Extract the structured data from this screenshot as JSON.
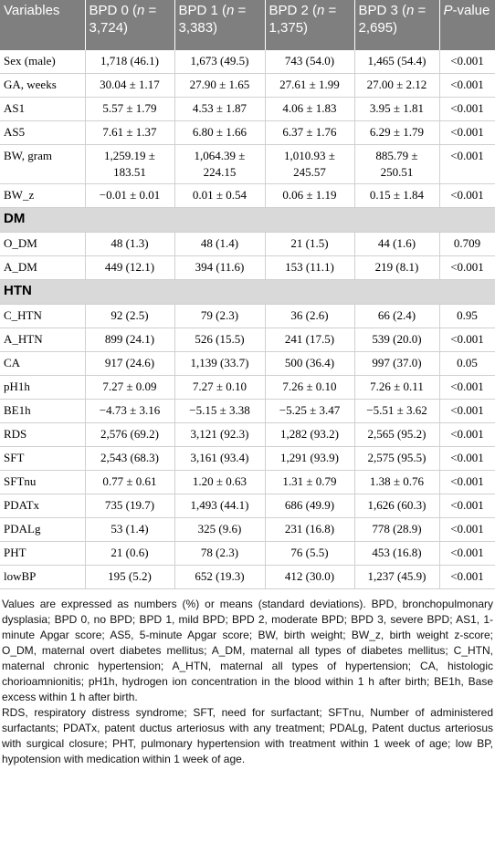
{
  "table": {
    "header": [
      [
        {
          "text": "Variables"
        }
      ],
      [
        {
          "text": "BPD 0 ("
        },
        {
          "text": "n",
          "italic": true
        },
        {
          "text": " = 3,724)"
        }
      ],
      [
        {
          "text": "BPD 1 ("
        },
        {
          "text": "n",
          "italic": true
        },
        {
          "text": " = 3,383)"
        }
      ],
      [
        {
          "text": "BPD 2 ("
        },
        {
          "text": "n",
          "italic": true
        },
        {
          "text": " = 1,375)"
        }
      ],
      [
        {
          "text": "BPD 3 ("
        },
        {
          "text": "n",
          "italic": true
        },
        {
          "text": " = 2,695)"
        }
      ],
      [
        {
          "text": "P",
          "italic": true
        },
        {
          "text": "-value"
        }
      ]
    ],
    "rows": [
      [
        "Sex (male)",
        "1,718 (46.1)",
        "1,673 (49.5)",
        "743 (54.0)",
        "1,465 (54.4)",
        "<0.001"
      ],
      [
        "GA, weeks",
        "30.04 ± 1.17",
        "27.90 ± 1.65",
        "27.61 ± 1.99",
        "27.00 ± 2.12",
        "<0.001"
      ],
      [
        "AS1",
        "5.57 ± 1.79",
        "4.53 ± 1.87",
        "4.06 ± 1.83",
        "3.95 ± 1.81",
        "<0.001"
      ],
      [
        "AS5",
        "7.61 ± 1.37",
        "6.80 ± 1.66",
        "6.37 ± 1.76",
        "6.29 ± 1.79",
        "<0.001"
      ],
      [
        "BW, gram",
        "1,259.19 ± 183.51",
        "1,064.39 ± 224.15",
        "1,010.93 ± 245.57",
        "885.79 ± 250.51",
        "<0.001"
      ],
      [
        "BW_z",
        "−0.01 ± 0.01",
        "0.01 ± 0.54",
        "0.06 ± 1.19",
        "0.15 ± 1.84",
        "<0.001"
      ],
      [
        "DM"
      ],
      [
        "O_DM",
        "48 (1.3)",
        "48 (1.4)",
        "21 (1.5)",
        "44 (1.6)",
        "0.709"
      ],
      [
        "A_DM",
        "449 (12.1)",
        "394 (11.6)",
        "153 (11.1)",
        "219 (8.1)",
        "<0.001"
      ],
      [
        "HTN"
      ],
      [
        "C_HTN",
        "92 (2.5)",
        "79 (2.3)",
        "36 (2.6)",
        "66 (2.4)",
        "0.95"
      ],
      [
        "A_HTN",
        "899 (24.1)",
        "526 (15.5)",
        "241 (17.5)",
        "539 (20.0)",
        "<0.001"
      ],
      [
        "CA",
        "917 (24.6)",
        "1,139 (33.7)",
        "500 (36.4)",
        "997 (37.0)",
        "0.05"
      ],
      [
        "pH1h",
        "7.27 ± 0.09",
        "7.27 ± 0.10",
        "7.26 ± 0.10",
        "7.26 ± 0.11",
        "<0.001"
      ],
      [
        "BE1h",
        "−4.73 ± 3.16",
        "−5.15 ± 3.38",
        "−5.25 ± 3.47",
        "−5.51 ± 3.62",
        "<0.001"
      ],
      [
        "RDS",
        "2,576 (69.2)",
        "3,121 (92.3)",
        "1,282 (93.2)",
        "2,565 (95.2)",
        "<0.001"
      ],
      [
        "SFT",
        "2,543 (68.3)",
        "3,161 (93.4)",
        "1,291 (93.9)",
        "2,575 (95.5)",
        "<0.001"
      ],
      [
        "SFTnu",
        "0.77 ± 0.61",
        "1.20 ± 0.63",
        "1.31 ± 0.79",
        "1.38 ± 0.76",
        "<0.001"
      ],
      [
        "PDATx",
        "735 (19.7)",
        "1,493 (44.1)",
        "686 (49.9)",
        "1,626 (60.3)",
        "<0.001"
      ],
      [
        "PDALg",
        "53 (1.4)",
        "325 (9.6)",
        "231 (16.8)",
        "778 (28.9)",
        "<0.001"
      ],
      [
        "PHT",
        "21 (0.6)",
        "78 (2.3)",
        "76 (5.5)",
        "453 (16.8)",
        "<0.001"
      ],
      [
        "lowBP",
        "195 (5.2)",
        "652 (19.3)",
        "412 (30.0)",
        "1,237 (45.9)",
        "<0.001"
      ]
    ]
  },
  "footnotes": [
    "Values are expressed as numbers (%) or means (standard deviations). BPD, bronchopulmonary dysplasia; BPD 0, no BPD; BPD 1, mild BPD; BPD 2, moderate BPD; BPD 3, severe BPD; AS1, 1-minute Apgar score; AS5, 5-minute Apgar score; BW, birth weight; BW_z, birth weight z-score; O_DM, maternal overt diabetes mellitus; A_DM, maternal all types of diabetes mellitus; C_HTN, maternal chronic hypertension; A_HTN, maternal all types of hypertension; CA, histologic chorioamnionitis; pH1h, hydrogen ion concentration in the blood within 1 h after birth; BE1h, Base excess within 1 h after birth.",
    "RDS, respiratory distress syndrome; SFT, need for surfactant; SFTnu, Number of administered surfactants; PDATx, patent ductus arteriosus with any treatment; PDALg, Patent ductus arteriosus with surgical closure; PHT, pulmonary hypertension with treatment within 1 week of age; low BP, hypotension with medication within 1 week of age."
  ]
}
